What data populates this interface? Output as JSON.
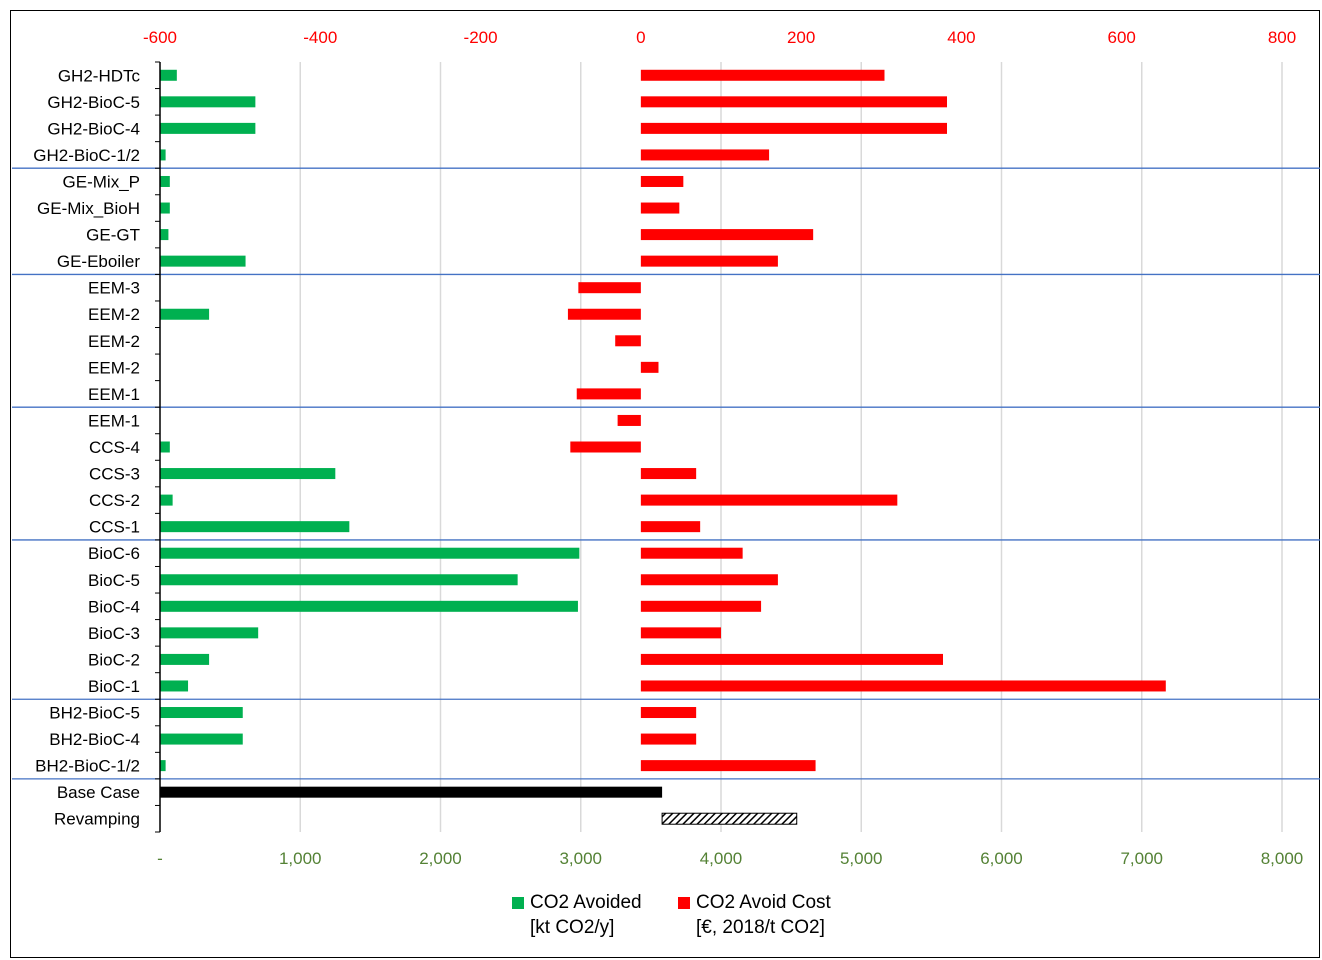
{
  "chart_data": {
    "type": "bar",
    "categories": [
      "GH2-HDTc",
      "GH2-BioC-5",
      "GH2-BioC-4",
      "GH2-BioC-1/2",
      "GE-Mix_P",
      "GE-Mix_BioH",
      "GE-GT",
      "GE-Eboiler",
      "EEM-3",
      "EEM-2",
      "EEM-2",
      "EEM-2",
      "EEM-1",
      "EEM-1",
      "CCS-4",
      "CCS-3",
      "CCS-2",
      "CCS-1",
      "BioC-6",
      "BioC-5",
      "BioC-4",
      "BioC-3",
      "BioC-2",
      "BioC-1",
      "BH2-BioC-5",
      "BH2-BioC-4",
      "BH2-BioC-1/2",
      "Base Case",
      "Revamping"
    ],
    "group_dividers_after": [
      "GH2-BioC-1/2",
      "GE-Eboiler",
      "EEM-1",
      "CCS-1",
      "BioC-1",
      "BH2-BioC-1/2"
    ],
    "series": [
      {
        "name": "CO2 Avoided [kt CO2/y]",
        "axis": "bottom",
        "color": "#00b050",
        "values": [
          120,
          680,
          680,
          40,
          70,
          70,
          60,
          610,
          0,
          350,
          0,
          0,
          0,
          0,
          70,
          1250,
          90,
          1350,
          2990,
          2550,
          2980,
          700,
          350,
          200,
          590,
          590,
          40,
          3580,
          null
        ]
      },
      {
        "name": "CO2 Avoid Cost [€, 2018/t CO2]",
        "axis": "top",
        "color": "#ff0000",
        "values": [
          304,
          382,
          382,
          160,
          53,
          48,
          215,
          171,
          -78,
          -91,
          -32,
          22,
          -80,
          -29,
          -88,
          69,
          320,
          74,
          127,
          171,
          150,
          100,
          377,
          655,
          69,
          69,
          218,
          null,
          null
        ]
      },
      {
        "name": "Revamping",
        "axis": "bottom",
        "color": "#000000",
        "pattern": "hatched",
        "values": [
          null,
          null,
          null,
          null,
          null,
          null,
          null,
          null,
          null,
          null,
          null,
          null,
          null,
          null,
          null,
          null,
          null,
          null,
          null,
          null,
          null,
          null,
          null,
          null,
          null,
          null,
          null,
          null,
          [
            3580,
            4540
          ]
        ]
      }
    ],
    "x_bottom": {
      "lim": [
        0,
        8000
      ],
      "ticks": [
        0,
        1000,
        2000,
        3000,
        4000,
        5000,
        6000,
        7000,
        8000
      ],
      "tick_labels": [
        "-",
        "1,000",
        "2,000",
        "3,000",
        "4,000",
        "5,000",
        "6,000",
        "7,000",
        "8,000"
      ],
      "color": "#548235"
    },
    "x_top": {
      "lim": [
        -600,
        800
      ],
      "ticks": [
        -600,
        -400,
        -200,
        0,
        200,
        400,
        600,
        800
      ],
      "tick_labels": [
        "-600",
        "-400",
        "-200",
        "0",
        "200",
        "400",
        "600",
        "800"
      ],
      "color": "#ff0000"
    },
    "gridlines": "vertical",
    "legend_position": "bottom",
    "legend": [
      {
        "label": "CO2 Avoided",
        "sub": "[kt CO2/y]",
        "color": "#00b050"
      },
      {
        "label": "CO2 Avoid Cost",
        "sub": "[€, 2018/t CO2]",
        "color": "#ff0000"
      }
    ]
  }
}
